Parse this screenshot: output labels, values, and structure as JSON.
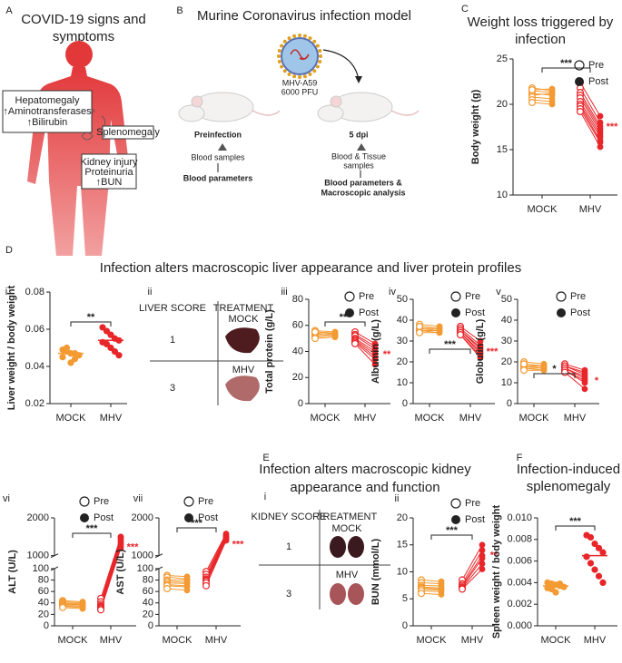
{
  "figure": {
    "panel_a": {
      "label": "A",
      "title": [
        "COVID-19 signs and",
        "symptoms"
      ],
      "liver_box": [
        "Hepatomegaly",
        "↑Aminotransferases",
        "↑Bilirubin"
      ],
      "spleen_box": "Splenomegaly",
      "kidney_box": [
        "Kidney injury",
        "Proteinuria",
        "↑BUN"
      ]
    },
    "panel_b": {
      "label": "B",
      "title": "Murine Coronavirus infection model",
      "virus": [
        "MHV-A59",
        "6000 PFU"
      ],
      "before": {
        "time": "Preinfection",
        "samples": "Blood samples",
        "analysis": "Blood parameters"
      },
      "after": {
        "time": "5 dpi",
        "samples": [
          "Blood & Tissue",
          "samples"
        ],
        "analysis": [
          "Blood parameters &",
          "Macroscopic analysis"
        ]
      }
    },
    "panel_d": {
      "label": "D",
      "title": "Infection alters macroscopic liver appearance and liver protein profiles"
    },
    "panel_e": {
      "label": "E",
      "title": [
        "Infection alters macroscopic kidney",
        "appearance and function"
      ]
    },
    "liver_table": {
      "label": "ii",
      "headers": [
        "LIVER SCORE",
        "TREATMENT"
      ],
      "rows": [
        {
          "score": "1",
          "treatment": "MOCK"
        },
        {
          "score": "3",
          "treatment": "MHV"
        }
      ]
    },
    "kidney_table": {
      "label": "i",
      "headers": [
        "KIDNEY SCORE",
        "TREATMENT"
      ],
      "rows": [
        {
          "score": "1",
          "treatment": "MOCK"
        },
        {
          "score": "3",
          "treatment": "MHV"
        }
      ]
    }
  },
  "chart_data": [
    {
      "type": "paired",
      "panel": "C",
      "title": [
        "Weight loss triggered by",
        "infection"
      ],
      "y_label": "Body weight (g)",
      "categories": [
        "MOCK",
        "MHV"
      ],
      "legend": [
        "Pre",
        "Post"
      ],
      "ylim": [
        10,
        25
      ],
      "yticks": [
        10,
        15,
        20,
        25
      ],
      "groups": [
        {
          "color": "#f39a32",
          "pre": [
            21.8,
            21.5,
            21.2,
            21.0,
            20.8,
            20.5,
            20.2,
            21.6
          ],
          "post": [
            21.5,
            21.3,
            21.0,
            21.2,
            20.6,
            20.3,
            20.0,
            21.7
          ]
        },
        {
          "color": "#e8262a",
          "pre": [
            22.4,
            21.8,
            21.3,
            21.0,
            20.7,
            20.3,
            20.0,
            19.8,
            19.5,
            19.2
          ],
          "post": [
            18.7,
            18.0,
            17.6,
            17.3,
            17.0,
            16.7,
            16.4,
            16.0,
            15.8,
            15.3
          ]
        }
      ],
      "significance": {
        "between": "***",
        "post": "***"
      }
    },
    {
      "type": "dot",
      "panel": "i",
      "y_label": "Liver weight / body weight",
      "categories": [
        "MOCK",
        "MHV"
      ],
      "ylim": [
        0.02,
        0.08
      ],
      "yticks": [
        0.02,
        0.04,
        0.06,
        0.08
      ],
      "groups": [
        {
          "color": "#f39a32",
          "values": [
            0.049,
            0.048,
            0.047,
            0.047,
            0.046,
            0.045,
            0.05,
            0.042,
            0.044
          ],
          "mean": 0.047
        },
        {
          "color": "#e8262a",
          "values": [
            0.061,
            0.059,
            0.057,
            0.055,
            0.054,
            0.053,
            0.052,
            0.05,
            0.048,
            0.046
          ],
          "mean": 0.054
        }
      ],
      "significance": {
        "between": "**"
      }
    },
    {
      "type": "paired",
      "panel": "iii",
      "y_label": "Total protein (g/L)",
      "categories": [
        "MOCK",
        "MHV"
      ],
      "legend": [
        "Pre",
        "Post"
      ],
      "ylim": [
        0,
        80
      ],
      "yticks": [
        0,
        20,
        40,
        60,
        80
      ],
      "groups": [
        {
          "color": "#f39a32",
          "pre": [
            56,
            55,
            54,
            53,
            52,
            51,
            50,
            55
          ],
          "post": [
            55,
            54,
            53,
            54,
            53,
            52,
            51,
            54
          ]
        },
        {
          "color": "#e8262a",
          "pre": [
            55,
            53,
            52,
            50,
            49,
            48,
            47,
            46
          ],
          "post": [
            46,
            44,
            42,
            40,
            38,
            36,
            34,
            30
          ]
        }
      ],
      "significance": {
        "between": "***",
        "post": "**"
      }
    },
    {
      "type": "paired",
      "panel": "iv",
      "y_label": "Albumin (g/L)",
      "categories": [
        "MOCK",
        "MHV"
      ],
      "legend": [
        "Pre",
        "Post"
      ],
      "ylim": [
        0,
        50
      ],
      "yticks": [
        0,
        10,
        20,
        30,
        40,
        50
      ],
      "groups": [
        {
          "color": "#f39a32",
          "pre": [
            38,
            37,
            36,
            36,
            35,
            35,
            34,
            37
          ],
          "post": [
            37,
            36,
            36,
            35,
            35,
            34,
            34,
            36
          ]
        },
        {
          "color": "#e8262a",
          "pre": [
            37,
            36,
            35,
            35,
            34,
            34,
            33,
            33
          ],
          "post": [
            30,
            28,
            27,
            26,
            25,
            24,
            23,
            22
          ]
        }
      ],
      "significance": {
        "between": "***",
        "post": "***"
      }
    },
    {
      "type": "paired",
      "panel": "v",
      "y_label": "Globulin (g/L)",
      "categories": [
        "MOCK",
        "MHV"
      ],
      "legend": [
        "Pre",
        "Post"
      ],
      "ylim": [
        0,
        50
      ],
      "yticks": [
        0,
        10,
        20,
        30,
        40,
        50
      ],
      "groups": [
        {
          "color": "#f39a32",
          "pre": [
            20,
            19,
            18,
            18,
            17,
            17,
            16,
            19
          ],
          "post": [
            19,
            18,
            18,
            17,
            17,
            16,
            16,
            18
          ]
        },
        {
          "color": "#e8262a",
          "pre": [
            19,
            18,
            18,
            17,
            17,
            16,
            16,
            15
          ],
          "post": [
            16,
            15,
            14,
            13,
            12,
            11,
            10,
            7
          ]
        }
      ],
      "significance": {
        "between": "*",
        "post": "*"
      }
    },
    {
      "type": "paired",
      "panel": "vi",
      "y_label": "ALT (U/L)",
      "categories": [
        "MOCK",
        "MHV"
      ],
      "legend": [
        "Pre",
        "Post"
      ],
      "ylim": [
        0,
        2000
      ],
      "axis_break": [
        100,
        1000
      ],
      "yticks": [
        0,
        20,
        40,
        60,
        80,
        100,
        1000,
        2000
      ],
      "groups": [
        {
          "color": "#f39a32",
          "pre": [
            44,
            42,
            40,
            38,
            37,
            35,
            34,
            32
          ],
          "post": [
            42,
            40,
            38,
            37,
            36,
            34,
            32,
            30
          ]
        },
        {
          "color": "#e8262a",
          "pre": [
            48,
            42,
            38,
            35,
            33,
            32,
            30,
            28
          ],
          "post": [
            1500,
            1480,
            1450,
            1400,
            1350,
            1300,
            1250,
            1200
          ]
        }
      ],
      "significance": {
        "between": "***",
        "post": "***"
      }
    },
    {
      "type": "paired",
      "panel": "vii",
      "y_label": "AST (U/L)",
      "categories": [
        "MOCK",
        "MHV"
      ],
      "legend": [
        "Pre",
        "Post"
      ],
      "ylim": [
        0,
        2000
      ],
      "axis_break": [
        100,
        1000
      ],
      "yticks": [
        0,
        20,
        40,
        60,
        80,
        100,
        1000,
        2000
      ],
      "groups": [
        {
          "color": "#f39a32",
          "pre": [
            88,
            85,
            80,
            78,
            75,
            72,
            70,
            65
          ],
          "post": [
            86,
            82,
            80,
            76,
            74,
            70,
            68,
            62
          ]
        },
        {
          "color": "#e8262a",
          "pre": [
            95,
            90,
            85,
            82,
            80,
            78,
            75,
            70
          ],
          "post": [
            1580,
            1550,
            1520,
            1500,
            1480,
            1450,
            1420,
            1400
          ]
        }
      ],
      "significance": {
        "between": "***",
        "post": "***"
      }
    },
    {
      "type": "paired",
      "panel": "ii",
      "y_label": "BUN (mmol/L)",
      "categories": [
        "MOCK",
        "MHV"
      ],
      "legend": [
        "Pre",
        "Post"
      ],
      "ylim": [
        0,
        20
      ],
      "yticks": [
        0,
        5,
        10,
        15,
        20
      ],
      "groups": [
        {
          "color": "#f39a32",
          "pre": [
            8.5,
            8.0,
            7.5,
            7.2,
            7.0,
            6.8,
            6.5,
            6.0
          ],
          "post": [
            8.2,
            7.8,
            7.4,
            7.0,
            6.8,
            6.6,
            6.3,
            5.8
          ]
        },
        {
          "color": "#e8262a",
          "pre": [
            8.5,
            7.8,
            7.5,
            7.2,
            7.0,
            6.8
          ],
          "post": [
            15.0,
            14.0,
            13.0,
            12.5,
            11.5,
            10.5
          ]
        }
      ],
      "significance": {
        "between": "***",
        "post": "**"
      }
    },
    {
      "type": "dot",
      "panel": "F",
      "title": [
        "Infection-induced",
        "splenomegaly"
      ],
      "y_label": "Spleen weight / body weight",
      "categories": [
        "MOCK",
        "MHV"
      ],
      "ylim": [
        0,
        0.01
      ],
      "yticks": [
        {
          "value": 0,
          "label": "0.000"
        },
        {
          "value": 0.002,
          "label": "0.002"
        },
        {
          "value": 0.004,
          "label": "0.004"
        },
        {
          "value": 0.006,
          "label": "0.006"
        },
        {
          "value": 0.008,
          "label": "0.008"
        },
        {
          "value": 0.01,
          "label": "0.010"
        }
      ],
      "groups": [
        {
          "color": "#f39a32",
          "values": [
            0.004,
            0.0039,
            0.0038,
            0.0037,
            0.0036,
            0.0035,
            0.0034,
            0.0031,
            0.0039
          ],
          "mean": 0.0037
        },
        {
          "color": "#e8262a",
          "values": [
            0.0084,
            0.0082,
            0.0076,
            0.0072,
            0.0068,
            0.0064,
            0.0058,
            0.0052,
            0.0046,
            0.004
          ],
          "mean": 0.0065
        }
      ],
      "significance": {
        "between": "***"
      }
    }
  ]
}
